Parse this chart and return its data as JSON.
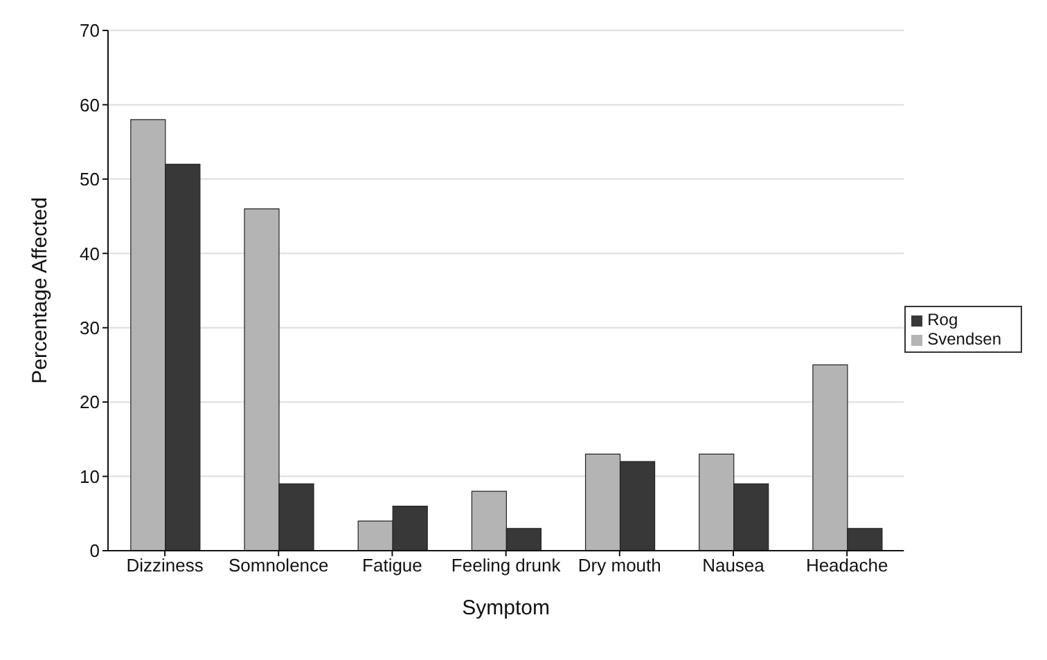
{
  "chart_data": {
    "type": "bar",
    "xlabel": "Symptom",
    "ylabel": "Percentage Affected",
    "categories": [
      "Dizziness",
      "Somnolence",
      "Fatigue",
      "Feeling drunk",
      "Dry mouth",
      "Nausea",
      "Headache"
    ],
    "series": [
      {
        "name": "Svendsen",
        "color": "#b4b4b4",
        "values": [
          58,
          46,
          4,
          8,
          13,
          13,
          25
        ]
      },
      {
        "name": "Rog",
        "color": "#383838",
        "values": [
          52,
          9,
          6,
          3,
          12,
          9,
          3
        ]
      }
    ],
    "ylim": [
      0,
      70
    ],
    "yticks": [
      0,
      10,
      20,
      30,
      40,
      50,
      60,
      70
    ],
    "grid": "y",
    "legend": "right"
  }
}
